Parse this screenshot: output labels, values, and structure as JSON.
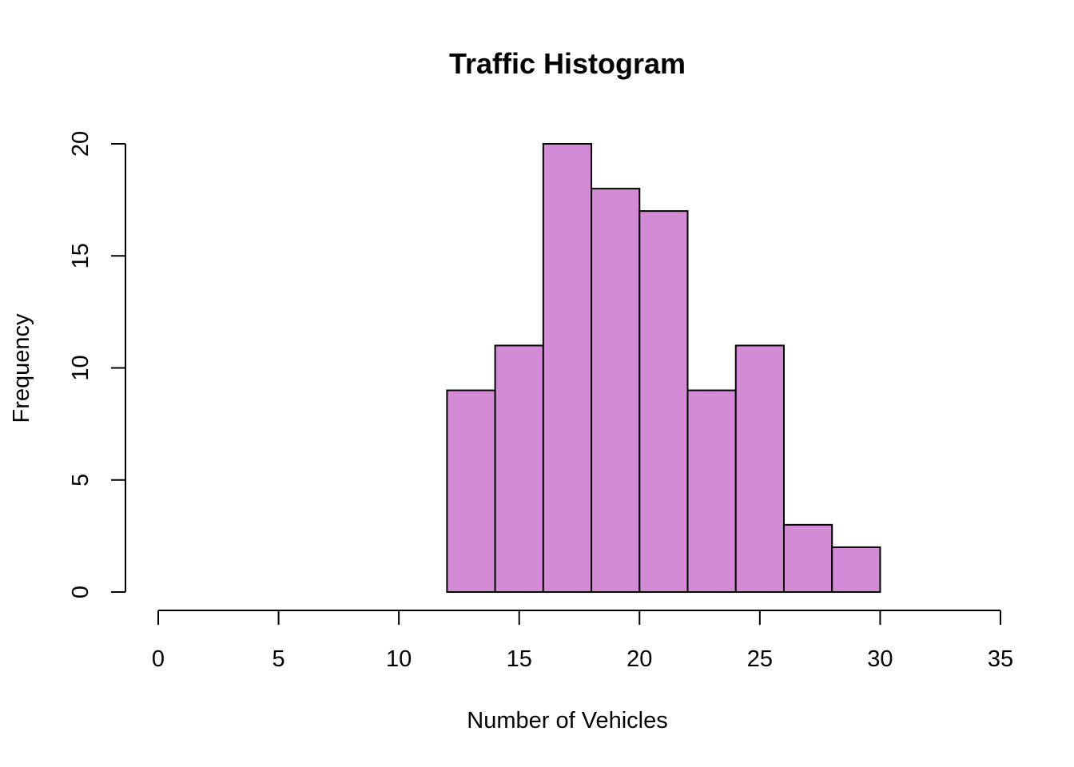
{
  "chart_data": {
    "type": "histogram",
    "title": "Traffic Histogram",
    "xlabel": "Number of Vehicles",
    "ylabel": "Frequency",
    "bin_edges": [
      12,
      14,
      16,
      18,
      20,
      22,
      24,
      26,
      28,
      30
    ],
    "values": [
      9,
      11,
      20,
      18,
      17,
      9,
      11,
      3,
      2
    ],
    "xlim": [
      0,
      35
    ],
    "ylim": [
      0,
      20
    ],
    "x_ticks": [
      0,
      5,
      10,
      15,
      20,
      25,
      30,
      35
    ],
    "x_tick_labels": [
      "0",
      "5",
      "10",
      "15",
      "20",
      "25",
      "30",
      "35"
    ],
    "y_ticks": [
      0,
      5,
      10,
      15,
      20
    ],
    "y_tick_labels": [
      "0",
      "5",
      "10",
      "15",
      "20"
    ],
    "bar_color": "#d38bd5",
    "grid": false,
    "legend": "none"
  }
}
